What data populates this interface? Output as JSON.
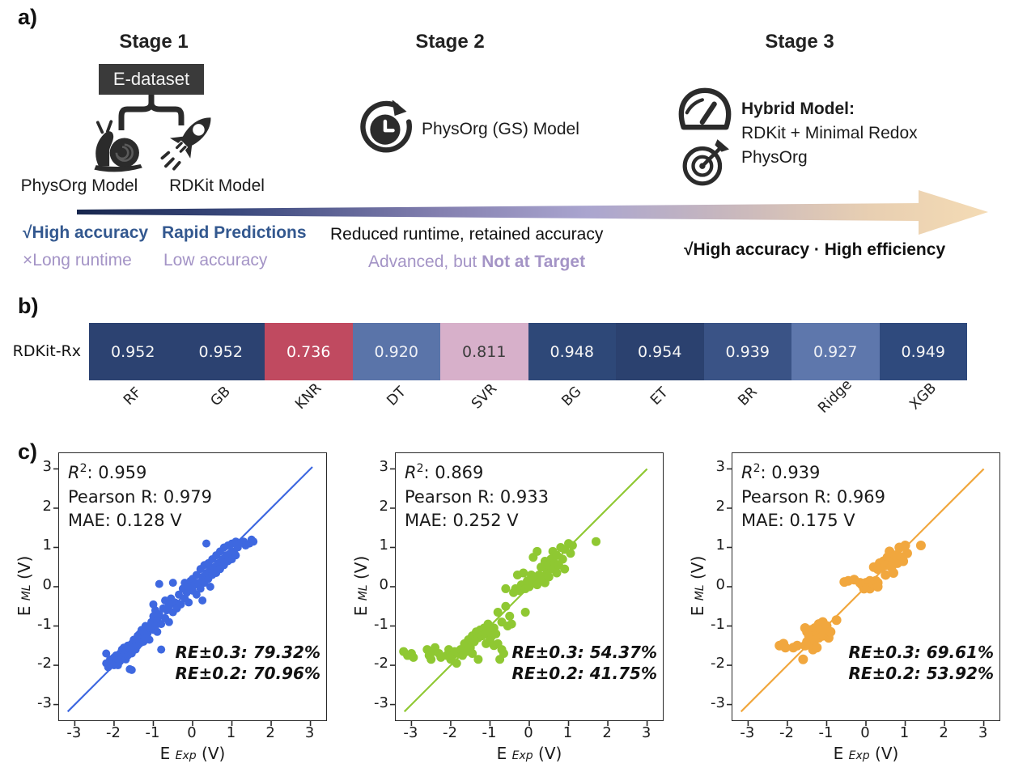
{
  "panels": {
    "a": {
      "label": "a)",
      "stage1": {
        "title": "Stage 1",
        "dataset": "E-dataset",
        "left_model": "PhysOrg Model",
        "right_model": "RDKit Model"
      },
      "stage2": {
        "title": "Stage 2",
        "model": "PhysOrg (GS) Model"
      },
      "stage3": {
        "title": "Stage 3",
        "model_title": "Hybrid Model:",
        "model_line1": "RDKit + Minimal Redox",
        "model_line2": "PhysOrg"
      },
      "icons": [
        "snail-icon",
        "rocket-icon",
        "runtime-clock-icon",
        "gauge-icon",
        "target-dart-icon",
        "progress-arrow"
      ],
      "pros_cons": {
        "col1_pro": "√High accuracy",
        "col1_con": "×Long runtime",
        "col2_pro": "Rapid Predictions",
        "col2_con": "Low accuracy",
        "mid_black": "Reduced runtime, retained accuracy",
        "mid_purple_prefix": "Advanced, but ",
        "mid_purple_bold": "Not at Target",
        "right_bold": "√High accuracy · High efficiency"
      },
      "colors": {
        "blue_text": "#33588f",
        "purple_text": "#a494c6",
        "arrow_start": "#17264d",
        "arrow_mid": "#aaa5cf",
        "arrow_end": "#f4dbb4"
      }
    },
    "b": {
      "label": "b)"
    },
    "c": {
      "label": "c)",
      "r2_r": "R",
      "r2_exp": "2",
      "colon": ":",
      "pearson_label": "Pearson R:",
      "mae_label": "MAE:"
    }
  },
  "chart_data": [
    {
      "type": "heatmap",
      "row_label": "RDKit-Rx",
      "categories": [
        "RF",
        "GB",
        "KNR",
        "DT",
        "SVR",
        "BG",
        "ET",
        "BR",
        "Ridge",
        "XGB"
      ],
      "values": [
        "0.952",
        "0.952",
        "0.736",
        "0.920",
        "0.811",
        "0.948",
        "0.954",
        "0.939",
        "0.927",
        "0.949"
      ],
      "cell_colors": [
        "#2c4271",
        "#2c4271",
        "#c04a60",
        "#5a74a9",
        "#d7b0ca",
        "#2e4878",
        "#2b416f",
        "#3a5386",
        "#5e77ac",
        "#2f4a7d"
      ],
      "value_text_colors": [
        "#f5f5f5",
        "#f5f5f5",
        "#ffffff",
        "#eef0f6",
        "#3c3c3c",
        "#f5f5f5",
        "#f5f5f5",
        "#f5f5f5",
        "#eef0f6",
        "#f5f5f5"
      ]
    },
    {
      "type": "scatter",
      "color": "#3e68e0",
      "point_radius": 5,
      "stats": {
        "r2": "0.959",
        "pearson": "0.979",
        "mae": "0.128 V"
      },
      "re": {
        "line1": "RE±0.3: 79.32%",
        "line2": "RE±0.2: 70.96%"
      },
      "xlabel": {
        "main": "E",
        "sub": "Exp",
        "unit": "(V)"
      },
      "ylabel": {
        "main": "E",
        "sub": "ML",
        "unit": "(V)"
      },
      "xlim": [
        -3.4,
        3.4
      ],
      "ylim": [
        -3.4,
        3.4
      ],
      "ticks": [
        -3,
        -2,
        -1,
        0,
        1,
        2,
        3
      ],
      "identity_line": [
        -3.18,
        3.05
      ],
      "points": [
        [
          -2.2,
          -1.95
        ],
        [
          -2.15,
          -2.05
        ],
        [
          -2.1,
          -1.85
        ],
        [
          -2.1,
          -2.0
        ],
        [
          -2.05,
          -1.9
        ],
        [
          -2.0,
          -2.0
        ],
        [
          -2.0,
          -1.8
        ],
        [
          -1.95,
          -1.75
        ],
        [
          -1.95,
          -1.95
        ],
        [
          -1.9,
          -1.85
        ],
        [
          -1.9,
          -2.0
        ],
        [
          -1.85,
          -1.7
        ],
        [
          -1.85,
          -1.9
        ],
        [
          -1.8,
          -1.8
        ],
        [
          -1.8,
          -1.6
        ],
        [
          -1.75,
          -1.75
        ],
        [
          -1.75,
          -1.55
        ],
        [
          -1.7,
          -1.85
        ],
        [
          -1.7,
          -1.65
        ],
        [
          -1.65,
          -1.5
        ],
        [
          -1.65,
          -1.75
        ],
        [
          -1.6,
          -1.6
        ],
        [
          -1.6,
          -2.1
        ],
        [
          -1.55,
          -1.45
        ],
        [
          -1.55,
          -1.7
        ],
        [
          -1.5,
          -1.55
        ],
        [
          -1.5,
          -1.35
        ],
        [
          -1.45,
          -1.6
        ],
        [
          -1.45,
          -1.4
        ],
        [
          -1.4,
          -1.25
        ],
        [
          -1.4,
          -1.5
        ],
        [
          -1.35,
          -1.45
        ],
        [
          -1.35,
          -1.2
        ],
        [
          -1.3,
          -1.35
        ],
        [
          -1.3,
          -1.1
        ],
        [
          -1.25,
          -1.4
        ],
        [
          -1.25,
          -1.15
        ],
        [
          -1.2,
          -1.3
        ],
        [
          -1.2,
          -1.0
        ],
        [
          -1.15,
          -1.2
        ],
        [
          -1.1,
          -1.05
        ],
        [
          -1.1,
          -1.35
        ],
        [
          -1.05,
          -0.9
        ],
        [
          -1.0,
          -1.1
        ],
        [
          -1.0,
          -0.75
        ],
        [
          -0.95,
          -1.0
        ],
        [
          -0.95,
          -0.6
        ],
        [
          -0.9,
          -0.85
        ],
        [
          -0.9,
          -1.15
        ],
        [
          -0.85,
          0.07
        ],
        [
          -0.85,
          -0.7
        ],
        [
          -0.8,
          -0.95
        ],
        [
          -0.8,
          -1.6
        ],
        [
          -0.75,
          -0.55
        ],
        [
          -0.7,
          -0.8
        ],
        [
          -0.7,
          -0.35
        ],
        [
          -0.65,
          -0.6
        ],
        [
          -0.6,
          -0.45
        ],
        [
          -0.6,
          -0.9
        ],
        [
          -0.55,
          -0.3
        ],
        [
          -0.5,
          -0.65
        ],
        [
          -0.5,
          0.1
        ],
        [
          -0.45,
          -0.4
        ],
        [
          -0.4,
          -0.55
        ],
        [
          -0.35,
          -0.2
        ],
        [
          -0.3,
          -0.45
        ],
        [
          -0.25,
          -0.05
        ],
        [
          -0.2,
          -0.3
        ],
        [
          -0.2,
          0.1
        ],
        [
          -0.15,
          -0.15
        ],
        [
          -0.1,
          0.0
        ],
        [
          -0.1,
          -0.4
        ],
        [
          -0.05,
          0.15
        ],
        [
          0.0,
          -0.1
        ],
        [
          0.0,
          0.2
        ],
        [
          0.05,
          0.05
        ],
        [
          0.1,
          -0.2
        ],
        [
          0.1,
          0.3
        ],
        [
          0.15,
          0.1
        ],
        [
          0.2,
          0.45
        ],
        [
          0.2,
          -0.05
        ],
        [
          0.25,
          0.25
        ],
        [
          0.3,
          0.1
        ],
        [
          0.3,
          0.55
        ],
        [
          0.35,
          1.1
        ],
        [
          0.35,
          0.35
        ],
        [
          0.4,
          0.2
        ],
        [
          0.4,
          0.6
        ],
        [
          0.45,
          0.45
        ],
        [
          0.5,
          0.3
        ],
        [
          0.5,
          0.7
        ],
        [
          0.55,
          0.5
        ],
        [
          0.6,
          0.35
        ],
        [
          0.6,
          0.8
        ],
        [
          0.65,
          0.6
        ],
        [
          0.7,
          0.45
        ],
        [
          0.7,
          0.9
        ],
        [
          0.75,
          0.7
        ],
        [
          0.8,
          0.55
        ],
        [
          0.8,
          1.0
        ],
        [
          0.85,
          0.8
        ],
        [
          0.9,
          0.65
        ],
        [
          0.9,
          1.05
        ],
        [
          0.95,
          0.85
        ],
        [
          1.0,
          0.7
        ],
        [
          1.0,
          1.1
        ],
        [
          1.05,
          0.9
        ],
        [
          1.1,
          1.15
        ],
        [
          1.1,
          0.8
        ],
        [
          1.15,
          1.0
        ],
        [
          1.2,
          1.1
        ],
        [
          1.3,
          1.15
        ],
        [
          1.35,
          1.05
        ],
        [
          1.45,
          1.1
        ],
        [
          1.5,
          1.2
        ],
        [
          1.55,
          1.15
        ],
        [
          0.45,
          0.0
        ],
        [
          0.25,
          -0.35
        ],
        [
          -1.55,
          -2.12
        ],
        [
          -2.2,
          -1.7
        ],
        [
          -1.0,
          -0.45
        ]
      ]
    },
    {
      "type": "scatter",
      "color": "#8fc832",
      "point_radius": 5.5,
      "stats": {
        "r2": "0.869",
        "pearson": "0.933",
        "mae": "0.252 V"
      },
      "re": {
        "line1": "RE±0.3: 54.37%",
        "line2": "RE±0.2: 41.75%"
      },
      "xlabel": {
        "main": "E",
        "sub": "Exp",
        "unit": "(V)"
      },
      "ylabel": {
        "main": "E",
        "sub": "ML",
        "unit": "(V)"
      },
      "xlim": [
        -3.4,
        3.4
      ],
      "ylim": [
        -3.4,
        3.4
      ],
      "ticks": [
        -3,
        -2,
        -1,
        0,
        1,
        2,
        3
      ],
      "identity_line": [
        -3.18,
        3.0
      ],
      "points": [
        [
          -3.2,
          -1.65
        ],
        [
          -3.1,
          -1.75
        ],
        [
          -3.0,
          -1.7
        ],
        [
          -2.95,
          -1.8
        ],
        [
          -2.6,
          -1.6
        ],
        [
          -2.55,
          -1.75
        ],
        [
          -2.5,
          -1.85
        ],
        [
          -2.45,
          -1.65
        ],
        [
          -2.4,
          -1.55
        ],
        [
          -2.3,
          -1.7
        ],
        [
          -2.25,
          -1.8
        ],
        [
          -2.1,
          -1.75
        ],
        [
          -2.05,
          -1.6
        ],
        [
          -2.0,
          -1.7
        ],
        [
          -2.0,
          -1.85
        ],
        [
          -1.95,
          -1.75
        ],
        [
          -1.9,
          -1.65
        ],
        [
          -1.85,
          -1.95
        ],
        [
          -1.8,
          -1.7
        ],
        [
          -1.75,
          -1.6
        ],
        [
          -1.7,
          -1.75
        ],
        [
          -1.65,
          -1.45
        ],
        [
          -1.6,
          -1.65
        ],
        [
          -1.55,
          -1.35
        ],
        [
          -1.5,
          -1.55
        ],
        [
          -1.45,
          -1.25
        ],
        [
          -1.45,
          -1.7
        ],
        [
          -1.4,
          -1.4
        ],
        [
          -1.35,
          -1.15
        ],
        [
          -1.3,
          -1.3
        ],
        [
          -1.3,
          -1.85
        ],
        [
          -1.25,
          -1.1
        ],
        [
          -1.2,
          -1.25
        ],
        [
          -1.15,
          -1.05
        ],
        [
          -1.1,
          -1.2
        ],
        [
          -1.1,
          -1.45
        ],
        [
          -1.05,
          -0.95
        ],
        [
          -1.0,
          -1.15
        ],
        [
          -1.0,
          -1.35
        ],
        [
          -0.95,
          -1.25
        ],
        [
          -0.9,
          -1.05
        ],
        [
          -0.9,
          -1.5
        ],
        [
          -0.85,
          -1.2
        ],
        [
          -0.8,
          -1.45
        ],
        [
          -0.8,
          -0.65
        ],
        [
          -0.75,
          -1.85
        ],
        [
          -0.7,
          -1.6
        ],
        [
          -0.7,
          -0.9
        ],
        [
          -0.65,
          -1.7
        ],
        [
          -0.6,
          -0.5
        ],
        [
          -0.55,
          -1.0
        ],
        [
          -0.5,
          -0.75
        ],
        [
          -0.45,
          -0.95
        ],
        [
          -0.4,
          -0.15
        ],
        [
          -0.35,
          -0.05
        ],
        [
          -0.3,
          0.3
        ],
        [
          -0.25,
          -0.1
        ],
        [
          -0.2,
          0.05
        ],
        [
          -0.15,
          0.35
        ],
        [
          -0.1,
          -0.05
        ],
        [
          -0.1,
          -0.65
        ],
        [
          -0.05,
          0.15
        ],
        [
          0.0,
          0.0
        ],
        [
          0.05,
          0.3
        ],
        [
          0.1,
          0.1
        ],
        [
          0.1,
          0.75
        ],
        [
          0.15,
          0.25
        ],
        [
          0.2,
          0.05
        ],
        [
          0.2,
          0.9
        ],
        [
          0.25,
          0.3
        ],
        [
          0.3,
          0.15
        ],
        [
          0.3,
          0.5
        ],
        [
          0.35,
          0.25
        ],
        [
          0.4,
          0.1
        ],
        [
          0.4,
          0.65
        ],
        [
          0.45,
          0.4
        ],
        [
          0.5,
          0.55
        ],
        [
          0.5,
          0.25
        ],
        [
          0.55,
          0.7
        ],
        [
          0.6,
          0.45
        ],
        [
          0.6,
          0.9
        ],
        [
          0.65,
          0.6
        ],
        [
          0.7,
          0.35
        ],
        [
          0.7,
          0.8
        ],
        [
          0.75,
          0.55
        ],
        [
          0.8,
          1.0
        ],
        [
          0.85,
          0.7
        ],
        [
          0.9,
          0.45
        ],
        [
          0.9,
          0.95
        ],
        [
          1.0,
          1.1
        ],
        [
          1.05,
          0.85
        ],
        [
          1.1,
          1.05
        ],
        [
          1.7,
          1.15
        ],
        [
          -0.6,
          -0.05
        ]
      ]
    },
    {
      "type": "scatter",
      "color": "#f1a73e",
      "point_radius": 6,
      "stats": {
        "r2": "0.939",
        "pearson": "0.969",
        "mae": "0.175 V"
      },
      "re": {
        "line1": "RE±0.3: 69.61%",
        "line2": "RE±0.2: 53.92%"
      },
      "xlabel": {
        "main": "E",
        "sub": "Exp",
        "unit": "(V)"
      },
      "ylabel": {
        "main": "E",
        "sub": "ML",
        "unit": "(V)"
      },
      "xlim": [
        -3.4,
        3.4
      ],
      "ylim": [
        -3.4,
        3.4
      ],
      "ticks": [
        -3,
        -2,
        -1,
        0,
        1,
        2,
        3
      ],
      "identity_line": [
        -3.18,
        3.0
      ],
      "points": [
        [
          -2.2,
          -1.5
        ],
        [
          -2.1,
          -1.45
        ],
        [
          -2.05,
          -1.55
        ],
        [
          -1.85,
          -1.55
        ],
        [
          -1.75,
          -1.5
        ],
        [
          -1.6,
          -1.85
        ],
        [
          -1.55,
          -1.05
        ],
        [
          -1.5,
          -1.15
        ],
        [
          -1.5,
          -1.4
        ],
        [
          -1.45,
          -1.25
        ],
        [
          -1.4,
          -1.1
        ],
        [
          -1.4,
          -1.5
        ],
        [
          -1.35,
          -1.2
        ],
        [
          -1.35,
          -1.6
        ],
        [
          -1.3,
          -1.05
        ],
        [
          -1.3,
          -1.35
        ],
        [
          -1.25,
          -1.15
        ],
        [
          -1.25,
          -1.55
        ],
        [
          -1.2,
          -0.95
        ],
        [
          -1.2,
          -1.3
        ],
        [
          -1.15,
          -1.1
        ],
        [
          -1.1,
          -1.25
        ],
        [
          -1.1,
          -0.9
        ],
        [
          -1.05,
          -1.2
        ],
        [
          -1.0,
          -1.0
        ],
        [
          -0.95,
          -1.3
        ],
        [
          -0.9,
          -1.15
        ],
        [
          -0.75,
          -0.85
        ],
        [
          -1.55,
          -1.5
        ],
        [
          -0.55,
          0.12
        ],
        [
          -0.45,
          0.15
        ],
        [
          -0.3,
          0.18
        ],
        [
          -0.15,
          0.1
        ],
        [
          -0.1,
          0.05
        ],
        [
          -0.05,
          -0.05
        ],
        [
          0.0,
          0.1
        ],
        [
          0.05,
          0.0
        ],
        [
          0.1,
          0.15
        ],
        [
          0.1,
          -0.05
        ],
        [
          0.15,
          0.1
        ],
        [
          0.2,
          0.05
        ],
        [
          0.2,
          0.5
        ],
        [
          0.25,
          0.15
        ],
        [
          0.3,
          0.1
        ],
        [
          0.3,
          0.45
        ],
        [
          0.3,
          0.0
        ],
        [
          0.35,
          0.6
        ],
        [
          0.4,
          0.5
        ],
        [
          0.45,
          0.65
        ],
        [
          0.5,
          0.55
        ],
        [
          0.5,
          0.3
        ],
        [
          0.55,
          0.75
        ],
        [
          0.6,
          0.6
        ],
        [
          0.6,
          0.9
        ],
        [
          0.65,
          0.5
        ],
        [
          0.7,
          0.65
        ],
        [
          0.7,
          0.35
        ],
        [
          0.75,
          0.8
        ],
        [
          0.8,
          0.6
        ],
        [
          0.85,
          1.0
        ],
        [
          0.9,
          0.75
        ],
        [
          0.95,
          0.65
        ],
        [
          1.0,
          1.05
        ],
        [
          1.05,
          0.85
        ],
        [
          1.4,
          1.05
        ]
      ]
    }
  ]
}
